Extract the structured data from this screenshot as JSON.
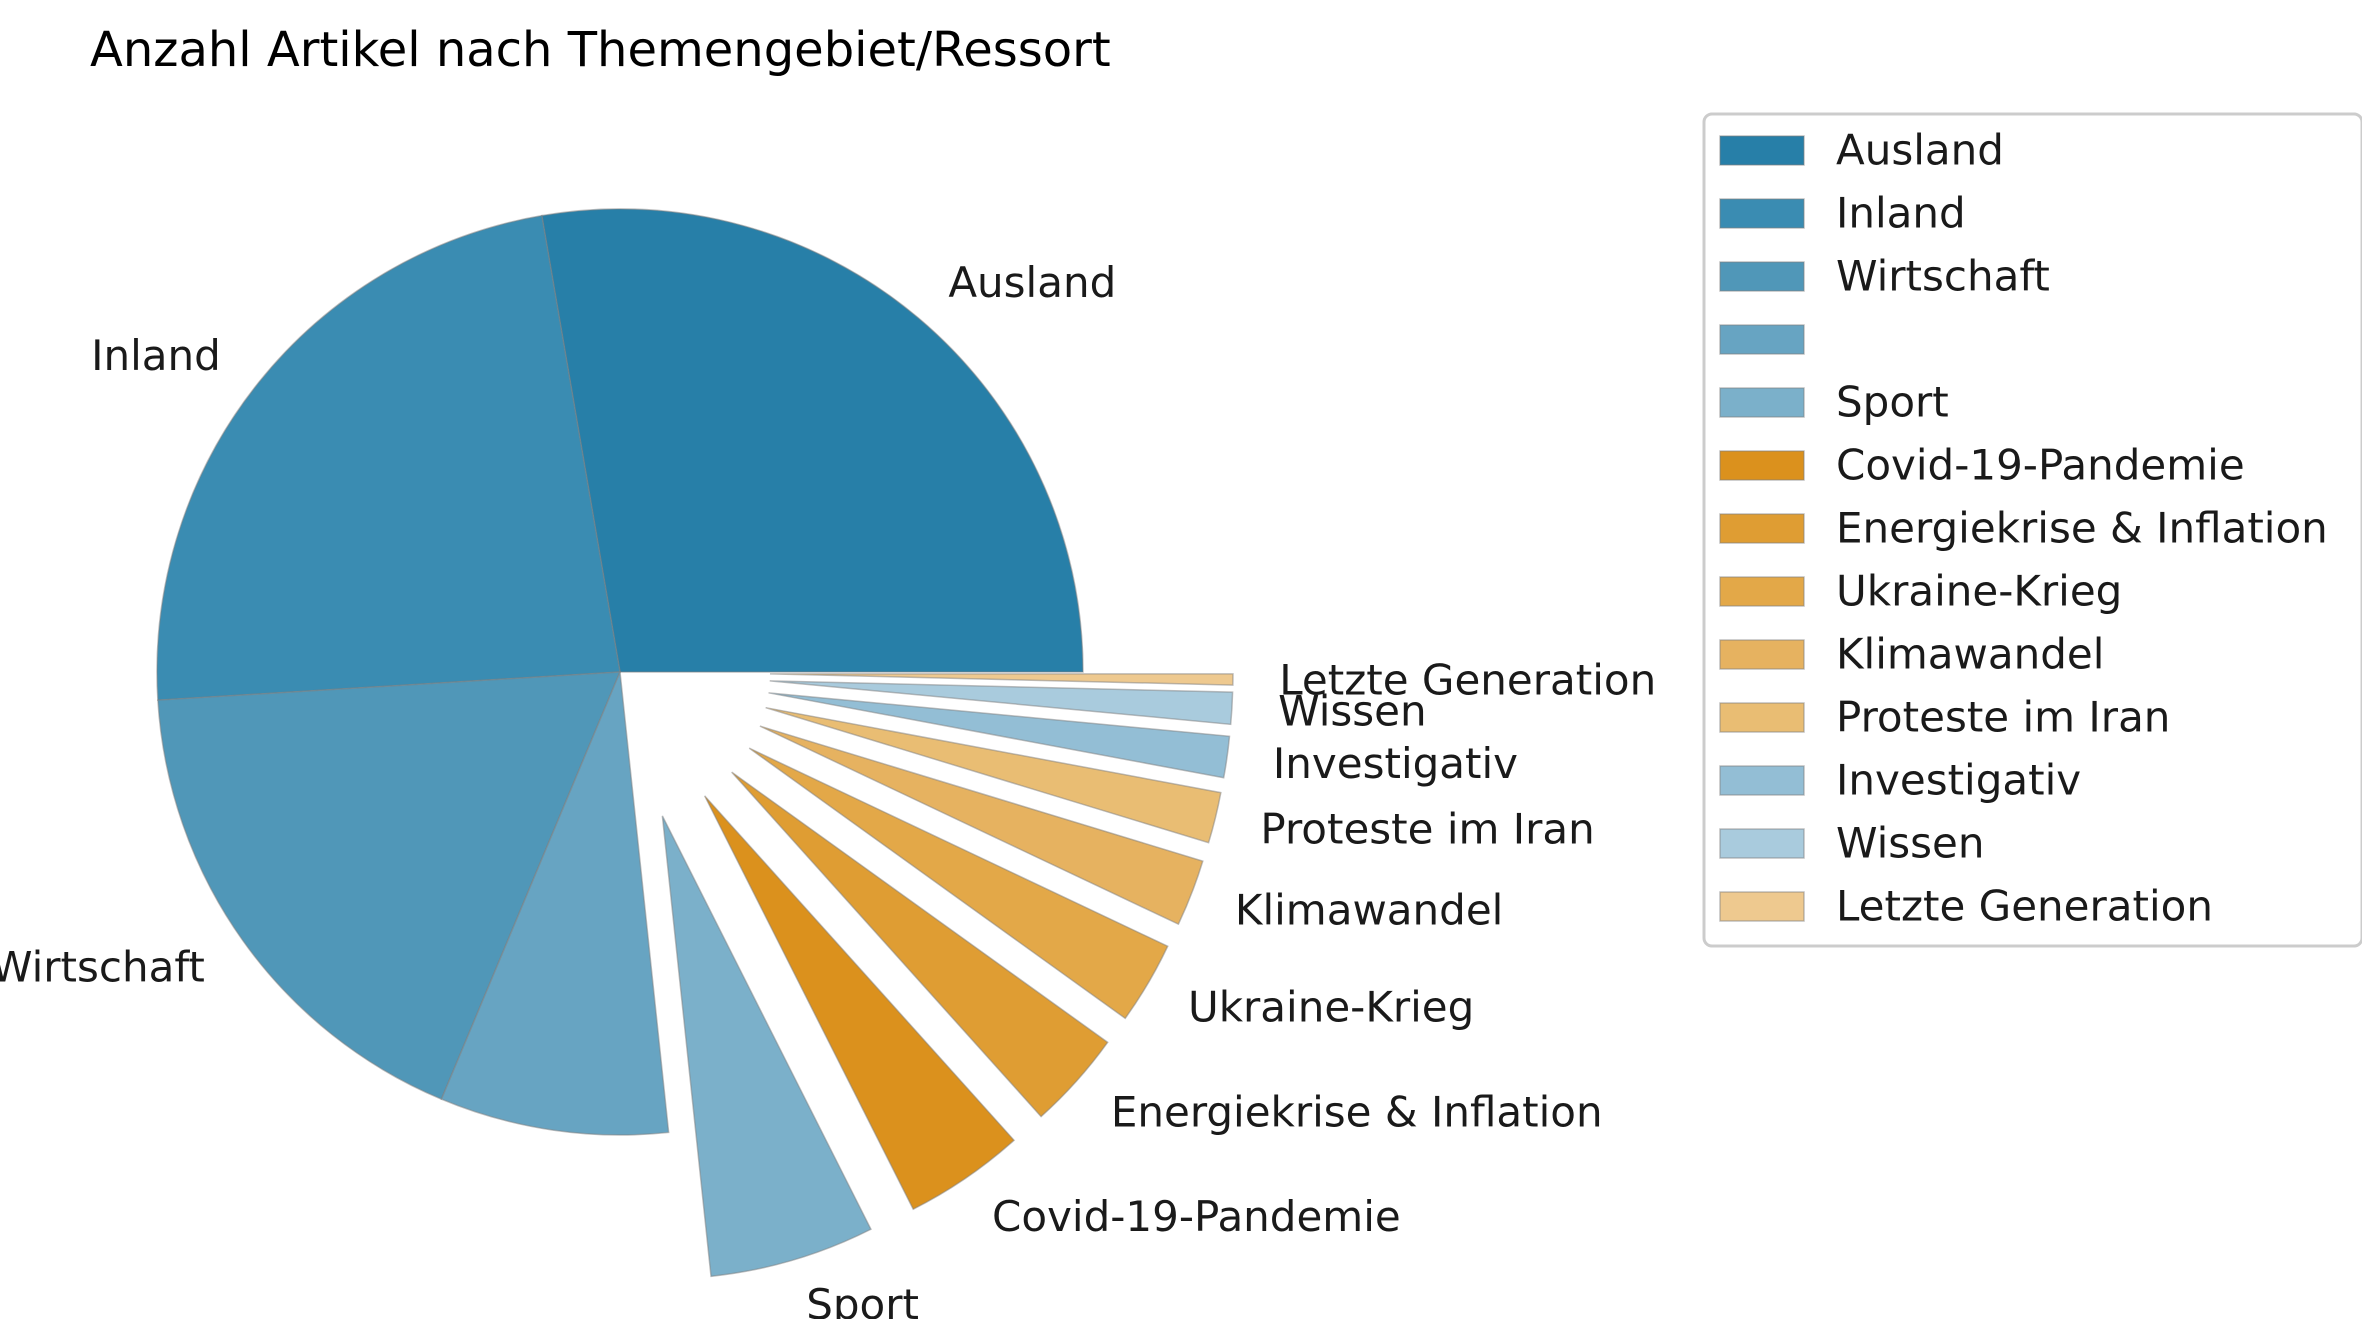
{
  "chart_data": {
    "type": "pie",
    "title": "Anzahl Artikel nach Themengebiet/Ressort",
    "legend_position": "right",
    "slices": [
      {
        "label": "Ausland",
        "value": 25.0,
        "color": "#277fa8",
        "exploded": false
      },
      {
        "label": "Inland",
        "value": 21.0,
        "color": "#3a8cb2",
        "exploded": false
      },
      {
        "label": "Wirtschaft",
        "value": 16.0,
        "color": "#5097b8",
        "exploded": false
      },
      {
        "label": "",
        "value": 7.2,
        "color": "#67a4c2",
        "exploded": false
      },
      {
        "label": "Sport",
        "value": 5.2,
        "color": "#7bb0ca",
        "exploded": true
      },
      {
        "label": "Covid-19-Pandemie",
        "value": 3.8,
        "color": "#db911d",
        "exploded": true
      },
      {
        "label": "Energiekrise & Inflation",
        "value": 3.1,
        "color": "#df9d33",
        "exploded": true
      },
      {
        "label": "Ukraine-Krieg",
        "value": 2.6,
        "color": "#e3a848",
        "exploded": true
      },
      {
        "label": "Klimawandel",
        "value": 2.1,
        "color": "#e6b260",
        "exploded": true
      },
      {
        "label": "Proteste im Iran",
        "value": 1.6,
        "color": "#e9bd73",
        "exploded": true
      },
      {
        "label": "Investigativ",
        "value": 1.3,
        "color": "#93bed5",
        "exploded": true
      },
      {
        "label": "Wissen",
        "value": 1.0,
        "color": "#a9cbdd",
        "exploded": true
      },
      {
        "label": "Letzte Generation",
        "value": 0.35,
        "color": "#eec98f",
        "exploded": true
      }
    ]
  }
}
